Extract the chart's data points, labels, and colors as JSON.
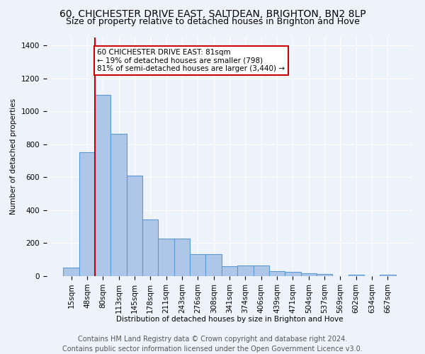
{
  "title1": "60, CHICHESTER DRIVE EAST, SALTDEAN, BRIGHTON, BN2 8LP",
  "title2": "Size of property relative to detached houses in Brighton and Hove",
  "xlabel": "Distribution of detached houses by size in Brighton and Hove",
  "ylabel": "Number of detached properties",
  "footer1": "Contains HM Land Registry data © Crown copyright and database right 2024.",
  "footer2": "Contains public sector information licensed under the Open Government Licence v3.0.",
  "annotation_line1": "60 CHICHESTER DRIVE EAST: 81sqm",
  "annotation_line2": "← 19% of detached houses are smaller (798)",
  "annotation_line3": "81% of semi-detached houses are larger (3,440) →",
  "bar_labels": [
    "15sqm",
    "48sqm",
    "80sqm",
    "113sqm",
    "145sqm",
    "178sqm",
    "211sqm",
    "243sqm",
    "276sqm",
    "308sqm",
    "341sqm",
    "374sqm",
    "406sqm",
    "439sqm",
    "471sqm",
    "504sqm",
    "537sqm",
    "569sqm",
    "602sqm",
    "634sqm",
    "667sqm"
  ],
  "bar_values": [
    50,
    750,
    1100,
    865,
    610,
    345,
    228,
    228,
    135,
    135,
    60,
    65,
    65,
    28,
    25,
    18,
    12,
    0,
    10,
    0,
    10
  ],
  "bar_color": "#aec6e8",
  "bar_edge_color": "#5b9bd5",
  "red_line_bar_index": 2,
  "ylim": [
    0,
    1450
  ],
  "yticks": [
    0,
    200,
    400,
    600,
    800,
    1000,
    1200,
    1400
  ],
  "bg_color": "#eef3fb",
  "grid_color": "#ffffff",
  "annotation_box_color": "#ffffff",
  "annotation_box_edge": "#cc0000",
  "red_line_color": "#cc0000",
  "title1_fontsize": 10,
  "title2_fontsize": 9,
  "axis_fontsize": 7.5,
  "footer_fontsize": 7,
  "annotation_fontsize": 7.5
}
